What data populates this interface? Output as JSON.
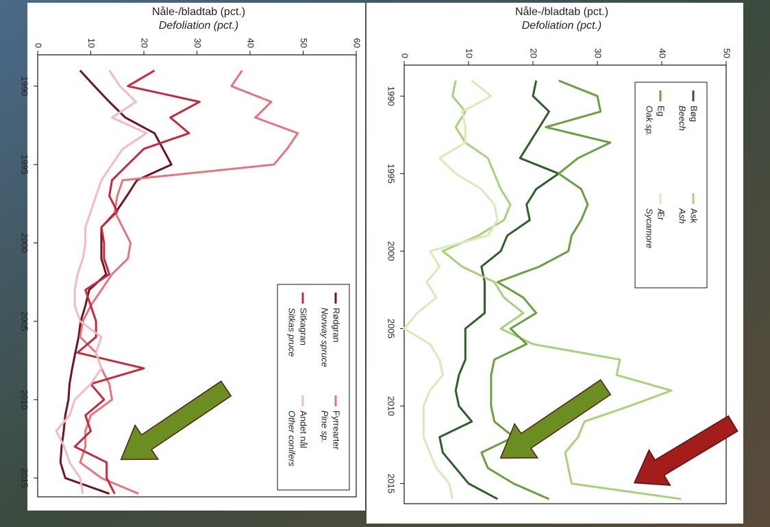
{
  "chart_data": [
    {
      "type": "line",
      "title": "Nåle-/bladtab (pct.)",
      "subtitle": "Defoliation (pct.)",
      "x": [
        1989,
        1990,
        1991,
        1992,
        1993,
        1994,
        1995,
        1996,
        1997,
        1998,
        1999,
        2000,
        2001,
        2002,
        2003,
        2004,
        2005,
        2006,
        2007,
        2008,
        2009,
        2010,
        2011,
        2012,
        2013,
        2014,
        2015,
        2016
      ],
      "xlim": [
        1988,
        2016.2
      ],
      "xticks": [
        1990,
        1995,
        2000,
        2005,
        2010,
        2015
      ],
      "ylim": [
        0,
        60
      ],
      "yticks": [
        0,
        10,
        20,
        30,
        40,
        50,
        60
      ],
      "legend": "upper right",
      "series": [
        {
          "name": "Rødgran",
          "name_en": "Norway spruce",
          "color": "#6e1420",
          "values": [
            8,
            10.7,
            13.5,
            16.5,
            22,
            23.6,
            25.2,
            18.7,
            16.8,
            14.8,
            12,
            12,
            12,
            12.9,
            9.7,
            9,
            8.1,
            7.7,
            7.1,
            6.5,
            6,
            5.8,
            5.2,
            4.9,
            4.5,
            4.3,
            5.2,
            13.5
          ]
        },
        {
          "name": "Fyrrearter",
          "name_en": "Pine sp.",
          "color": "#e8737c",
          "values": [
            38.5,
            36.5,
            44,
            41,
            49,
            47,
            44.5,
            16,
            15,
            14.5,
            16,
            17.5,
            17,
            14,
            12,
            10,
            8.5,
            8,
            11,
            12,
            13.5,
            14,
            10,
            9,
            9,
            8,
            12,
            19
          ]
        },
        {
          "name": "Sitkagran",
          "name_en": "Sitkas pruce",
          "color": "#c8283c",
          "values": [
            22,
            17,
            30.5,
            25,
            28.5,
            20,
            17,
            14,
            13.5,
            15,
            12,
            12.5,
            12.5,
            13.5,
            9,
            10,
            11,
            11,
            7.5,
            20,
            10,
            12.5,
            9,
            10,
            7,
            13,
            13,
            14.5
          ]
        },
        {
          "name": "Andet nål",
          "name_en": "Other conifers",
          "color": "#f5b9c2",
          "values": [
            13.5,
            15.5,
            18.5,
            14,
            20.5,
            16,
            14,
            12,
            11,
            10,
            9,
            9,
            8.5,
            7.5,
            7,
            7,
            8,
            12,
            11,
            12,
            10,
            7,
            6,
            3.5,
            5,
            6,
            8,
            8.5
          ]
        }
      ]
    },
    {
      "type": "line",
      "title": "Nåle-/bladtab (pct.)",
      "subtitle": "Defoliation (pct.)",
      "x": [
        1989,
        1990,
        1991,
        1992,
        1993,
        1994,
        1995,
        1996,
        1997,
        1998,
        1999,
        2000,
        2001,
        2002,
        2003,
        2004,
        2005,
        2006,
        2007,
        2008,
        2009,
        2010,
        2011,
        2012,
        2013,
        2014,
        2015,
        2016
      ],
      "xlim": [
        1988,
        2016.3
      ],
      "xticks": [
        1990,
        1995,
        2000,
        2005,
        2010,
        2015
      ],
      "ylim": [
        0,
        50
      ],
      "yticks": [
        0,
        10,
        20,
        30,
        40,
        50
      ],
      "legend": "upper left",
      "series": [
        {
          "name": "Bøg",
          "name_en": "Beech",
          "color": "#2e5e2a",
          "values": [
            20.5,
            20,
            22.5,
            21,
            19.5,
            18,
            24,
            20.5,
            19,
            19.5,
            16,
            15,
            12,
            12.5,
            12.5,
            12.5,
            9.5,
            9.5,
            9.5,
            8.5,
            8,
            8.5,
            10.5,
            5.5,
            6,
            8,
            10,
            14.5
          ]
        },
        {
          "name": "Ask",
          "name_en": "Ash",
          "color": "#a6d279",
          "values": [
            8,
            7.5,
            9.5,
            8,
            9.5,
            13,
            14,
            15,
            16.5,
            15.5,
            11.5,
            6,
            9,
            14,
            15.5,
            18.5,
            15,
            20,
            33.5,
            33,
            41.5,
            35,
            28,
            27,
            25,
            25.5,
            26,
            43
          ]
        },
        {
          "name": "Eg",
          "name_en": "Oak sp.",
          "color": "#6aa040",
          "values": [
            24,
            30,
            30.5,
            22,
            32,
            27,
            24,
            27.5,
            28.5,
            27.5,
            26,
            25.5,
            21,
            14.5,
            18.5,
            20.5,
            16.5,
            19,
            14,
            13.5,
            13.5,
            13.5,
            14,
            17,
            12,
            13,
            17,
            22.5
          ]
        },
        {
          "name": "Ær",
          "name_en": "Sycamore",
          "color": "#d6ecb8",
          "values": [
            10.5,
            13.5,
            9,
            9.5,
            9.5,
            5.5,
            8,
            12,
            14,
            14.5,
            13,
            4,
            5.5,
            3.5,
            5,
            2,
            0,
            4,
            5.5,
            6,
            4,
            3,
            3,
            3,
            4,
            5,
            7,
            7.5
          ]
        }
      ]
    }
  ]
}
